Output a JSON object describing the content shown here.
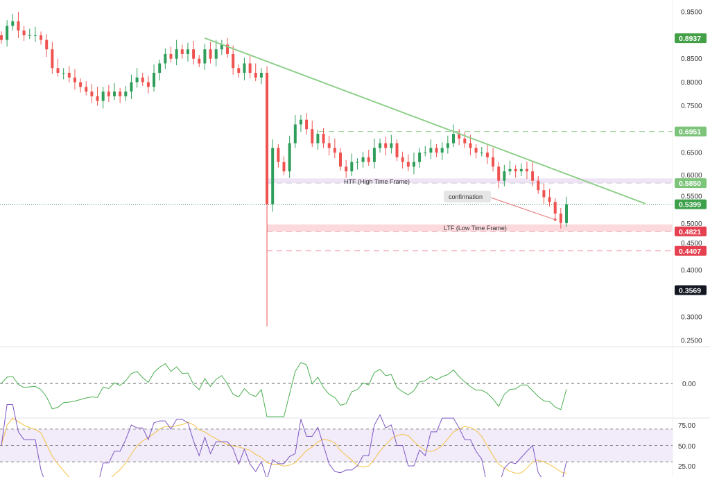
{
  "chart_data": {
    "type": "candlestick",
    "y_ticks": [
      "0.9500",
      "0.8500",
      "0.8000",
      "0.7500",
      "0.6500",
      "0.6000",
      "0.5500",
      "0.5000",
      "0.4500",
      "0.4000",
      "0.3000",
      "0.2500"
    ],
    "ylim": [
      0.25,
      0.95
    ],
    "closes": [
      0.89,
      0.92,
      0.93,
      0.91,
      0.9,
      0.9,
      0.9,
      0.89,
      0.87,
      0.83,
      0.82,
      0.82,
      0.81,
      0.8,
      0.79,
      0.78,
      0.77,
      0.76,
      0.78,
      0.77,
      0.78,
      0.77,
      0.78,
      0.8,
      0.81,
      0.8,
      0.79,
      0.82,
      0.84,
      0.86,
      0.85,
      0.87,
      0.86,
      0.87,
      0.85,
      0.84,
      0.87,
      0.85,
      0.87,
      0.88,
      0.86,
      0.83,
      0.82,
      0.84,
      0.82,
      0.81,
      0.82,
      0.54,
      0.66,
      0.63,
      0.61,
      0.67,
      0.71,
      0.72,
      0.7,
      0.67,
      0.69,
      0.67,
      0.66,
      0.65,
      0.62,
      0.61,
      0.63,
      0.63,
      0.64,
      0.63,
      0.66,
      0.67,
      0.66,
      0.67,
      0.64,
      0.63,
      0.62,
      0.63,
      0.65,
      0.65,
      0.66,
      0.65,
      0.66,
      0.67,
      0.69,
      0.68,
      0.67,
      0.66,
      0.65,
      0.65,
      0.64,
      0.62,
      0.59,
      0.61,
      0.615,
      0.61,
      0.615,
      0.61,
      0.59,
      0.57,
      0.555,
      0.545,
      0.52,
      0.5,
      0.5399
    ],
    "spike_low": {
      "index": 47,
      "value": 0.28
    },
    "trendline": {
      "from": [
        36,
        0.894
      ],
      "to": [
        114,
        0.541
      ],
      "color": "#8fcf8a"
    },
    "price_labels": [
      {
        "value": 0.8937,
        "text": "0.8937",
        "color": "#43a047"
      },
      {
        "value": 0.6951,
        "text": "0.6951",
        "color": "#7cc47a"
      },
      {
        "value": 0.585,
        "text": "0.5850",
        "color": "#7cc47a"
      },
      {
        "value": 0.5399,
        "text": "0.5399",
        "color": "#3da04a"
      },
      {
        "value": 0.4821,
        "text": "0.4821",
        "color": "#e5404f"
      },
      {
        "value": 0.4407,
        "text": "0.4407",
        "color": "#e5404f"
      },
      {
        "value": 0.3569,
        "text": "0.3569",
        "color": "#131722"
      }
    ],
    "zones": {
      "htf": {
        "label": "HTF (High Time Frame)",
        "low": 0.585,
        "high": 0.595,
        "start_index": 47
      },
      "ltf": {
        "label": "LTF (Low Time Frame)",
        "low": 0.4821,
        "high": 0.497,
        "start_index": 47
      }
    },
    "levels": {
      "resistance": 0.6951,
      "support": 0.4407,
      "current": 0.5399
    },
    "annotation": {
      "text": "confirmation",
      "target_index": 98,
      "target_value": 0.507
    },
    "oscillator": {
      "zero_label": "0.00"
    },
    "rsi": {
      "ticks": [
        "75.00",
        "50.00",
        "25.00"
      ]
    },
    "colors": {
      "up": "#26a69a",
      "up_body": "#2e9e5a",
      "down": "#ef5350",
      "osc": "#4caf50",
      "rsi": "#7e57c2",
      "rsi_ma": "#f5c242"
    }
  }
}
